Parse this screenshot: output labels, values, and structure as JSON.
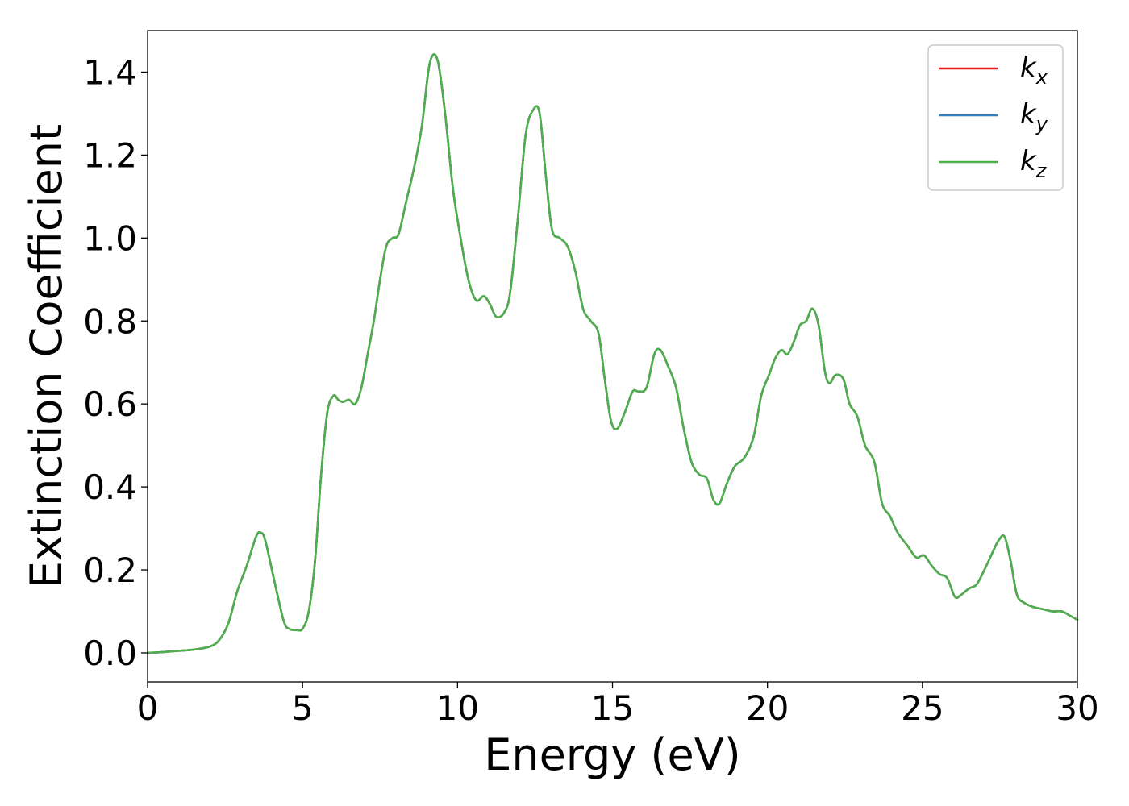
{
  "chart_data": {
    "type": "line",
    "title": "",
    "xlabel": "Energy (eV)",
    "ylabel": "Extinction Coefficient",
    "xlim": [
      0,
      30
    ],
    "ylim": [
      -0.07,
      1.5
    ],
    "xticks": [
      0,
      5,
      10,
      15,
      20,
      25,
      30
    ],
    "xtick_labels": [
      "0",
      "5",
      "10",
      "15",
      "20",
      "25",
      "30"
    ],
    "yticks": [
      0.0,
      0.2,
      0.4,
      0.6,
      0.8,
      1.0,
      1.2,
      1.4
    ],
    "ytick_labels": [
      "0.0",
      "0.2",
      "0.4",
      "0.6",
      "0.8",
      "1.0",
      "1.2",
      "1.4"
    ],
    "grid": false,
    "legend_position": "top-right",
    "x": [
      0,
      0.5,
      1.0,
      1.5,
      2.0,
      2.3,
      2.6,
      2.9,
      3.2,
      3.5,
      3.65,
      3.8,
      4.1,
      4.4,
      4.6,
      4.8,
      5.0,
      5.2,
      5.4,
      5.6,
      5.8,
      6.0,
      6.15,
      6.3,
      6.5,
      6.7,
      6.9,
      7.1,
      7.3,
      7.5,
      7.7,
      7.9,
      8.1,
      8.35,
      8.6,
      8.85,
      9.1,
      9.35,
      9.6,
      9.85,
      10.1,
      10.35,
      10.6,
      10.85,
      11.05,
      11.25,
      11.5,
      11.7,
      11.95,
      12.2,
      12.45,
      12.65,
      12.85,
      13.05,
      13.3,
      13.55,
      13.8,
      14.05,
      14.3,
      14.55,
      14.75,
      14.95,
      15.15,
      15.4,
      15.65,
      15.85,
      16.1,
      16.35,
      16.55,
      16.8,
      17.05,
      17.3,
      17.55,
      17.8,
      18.05,
      18.25,
      18.45,
      18.7,
      18.95,
      19.25,
      19.55,
      19.8,
      20.05,
      20.25,
      20.45,
      20.65,
      20.85,
      21.05,
      21.25,
      21.45,
      21.65,
      21.85,
      22.0,
      22.2,
      22.45,
      22.65,
      22.9,
      23.15,
      23.45,
      23.7,
      23.95,
      24.2,
      24.5,
      24.8,
      25.05,
      25.3,
      25.55,
      25.8,
      26.05,
      26.25,
      26.5,
      26.75,
      27.0,
      27.25,
      27.45,
      27.65,
      27.85,
      28.05,
      28.3,
      28.6,
      28.9,
      29.2,
      29.5,
      29.75,
      30.0
    ],
    "series": [
      {
        "name": "k_x",
        "color": "#e41a1c"
      },
      {
        "name": "k_y",
        "color": "#377eb8"
      },
      {
        "name": "k_z",
        "color": "#4daf4a"
      }
    ],
    "y": [
      0.0,
      0.002,
      0.005,
      0.008,
      0.015,
      0.03,
      0.07,
      0.15,
      0.21,
      0.28,
      0.29,
      0.27,
      0.17,
      0.075,
      0.057,
      0.055,
      0.058,
      0.1,
      0.22,
      0.43,
      0.58,
      0.62,
      0.61,
      0.605,
      0.61,
      0.6,
      0.64,
      0.72,
      0.8,
      0.9,
      0.98,
      1.0,
      1.01,
      1.09,
      1.17,
      1.27,
      1.42,
      1.43,
      1.3,
      1.12,
      1.0,
      0.9,
      0.85,
      0.86,
      0.84,
      0.81,
      0.82,
      0.87,
      1.05,
      1.25,
      1.31,
      1.3,
      1.15,
      1.02,
      1.0,
      0.98,
      0.92,
      0.83,
      0.8,
      0.77,
      0.66,
      0.56,
      0.54,
      0.58,
      0.63,
      0.63,
      0.64,
      0.72,
      0.73,
      0.69,
      0.64,
      0.54,
      0.46,
      0.43,
      0.42,
      0.37,
      0.36,
      0.41,
      0.45,
      0.47,
      0.52,
      0.62,
      0.67,
      0.71,
      0.73,
      0.72,
      0.75,
      0.79,
      0.8,
      0.83,
      0.79,
      0.68,
      0.65,
      0.67,
      0.66,
      0.6,
      0.57,
      0.5,
      0.46,
      0.36,
      0.33,
      0.29,
      0.26,
      0.23,
      0.235,
      0.21,
      0.19,
      0.18,
      0.135,
      0.14,
      0.155,
      0.165,
      0.2,
      0.24,
      0.27,
      0.28,
      0.22,
      0.14,
      0.12,
      0.11,
      0.105,
      0.1,
      0.1,
      0.09,
      0.08
    ]
  }
}
